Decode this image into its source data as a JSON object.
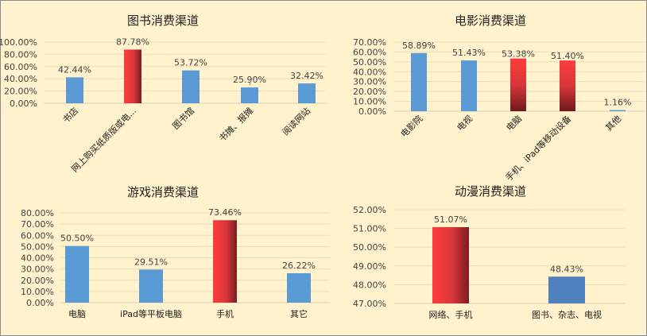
{
  "colors": {
    "blue": "#5b9bd5",
    "dark_blue": "#4f81bd",
    "red": "#ff3b3b",
    "dark_red": "#7a1e22",
    "background": "#fff2cc",
    "grid": "#e8dcbc"
  },
  "chart_data": [
    {
      "type": "bar",
      "title": "图书消费渠道",
      "categories": [
        "书店",
        "网上购买纸质版或电...",
        "图书馆",
        "书摊、报摊",
        "阅读网站"
      ],
      "values": [
        42.44,
        87.78,
        53.72,
        25.9,
        32.42
      ],
      "data_labels": [
        "42.44%",
        "87.78%",
        "53.72%",
        "25.90%",
        "32.42%"
      ],
      "highlight": [
        false,
        true,
        false,
        false,
        false
      ],
      "yticks": [
        "0.00%",
        "20.00%",
        "40.00%",
        "60.00%",
        "80.00%",
        "100.00%"
      ],
      "ylim": [
        0,
        100
      ],
      "grid": true,
      "xlabel_rotation": "diagonal"
    },
    {
      "type": "bar",
      "title": "电影消费渠道",
      "categories": [
        "电影院",
        "电视",
        "电脑",
        "手机、iPad等移动设备",
        "其他"
      ],
      "values": [
        58.89,
        51.43,
        53.38,
        51.4,
        1.16
      ],
      "data_labels": [
        "58.89%",
        "51.43%",
        "53.38%",
        "51.40%",
        "1.16%"
      ],
      "highlight": [
        false,
        false,
        true,
        true,
        false
      ],
      "yticks": [
        "0.00%",
        "10.00%",
        "20.00%",
        "30.00%",
        "40.00%",
        "50.00%",
        "60.00%",
        "70.00%"
      ],
      "ylim": [
        0,
        70
      ],
      "grid": true,
      "xlabel_rotation": "diagonal"
    },
    {
      "type": "bar",
      "title": "游戏消费渠道",
      "categories": [
        "电脑",
        "iPad等平板电脑",
        "手机",
        "其它"
      ],
      "values": [
        50.5,
        29.51,
        73.46,
        26.22
      ],
      "data_labels": [
        "50.50%",
        "29.51%",
        "73.46%",
        "26.22%"
      ],
      "highlight": [
        false,
        false,
        true,
        false
      ],
      "yticks": [
        "0.00%",
        "10.00%",
        "20.00%",
        "30.00%",
        "40.00%",
        "50.00%",
        "60.00%",
        "70.00%",
        "80.00%"
      ],
      "ylim": [
        0,
        80
      ],
      "grid": true,
      "xlabel_rotation": "horizontal"
    },
    {
      "type": "bar",
      "title": "动漫消费渠道",
      "categories": [
        "网络、手机",
        "图书、杂志、电视"
      ],
      "values": [
        51.07,
        48.43
      ],
      "data_labels": [
        "51.07%",
        "48.43%"
      ],
      "highlight": [
        true,
        false
      ],
      "yticks": [
        "47.00%",
        "48.00%",
        "49.00%",
        "50.00%",
        "51.00%",
        "52.00%"
      ],
      "ylim": [
        47,
        52
      ],
      "grid": true,
      "xlabel_rotation": "horizontal"
    }
  ]
}
